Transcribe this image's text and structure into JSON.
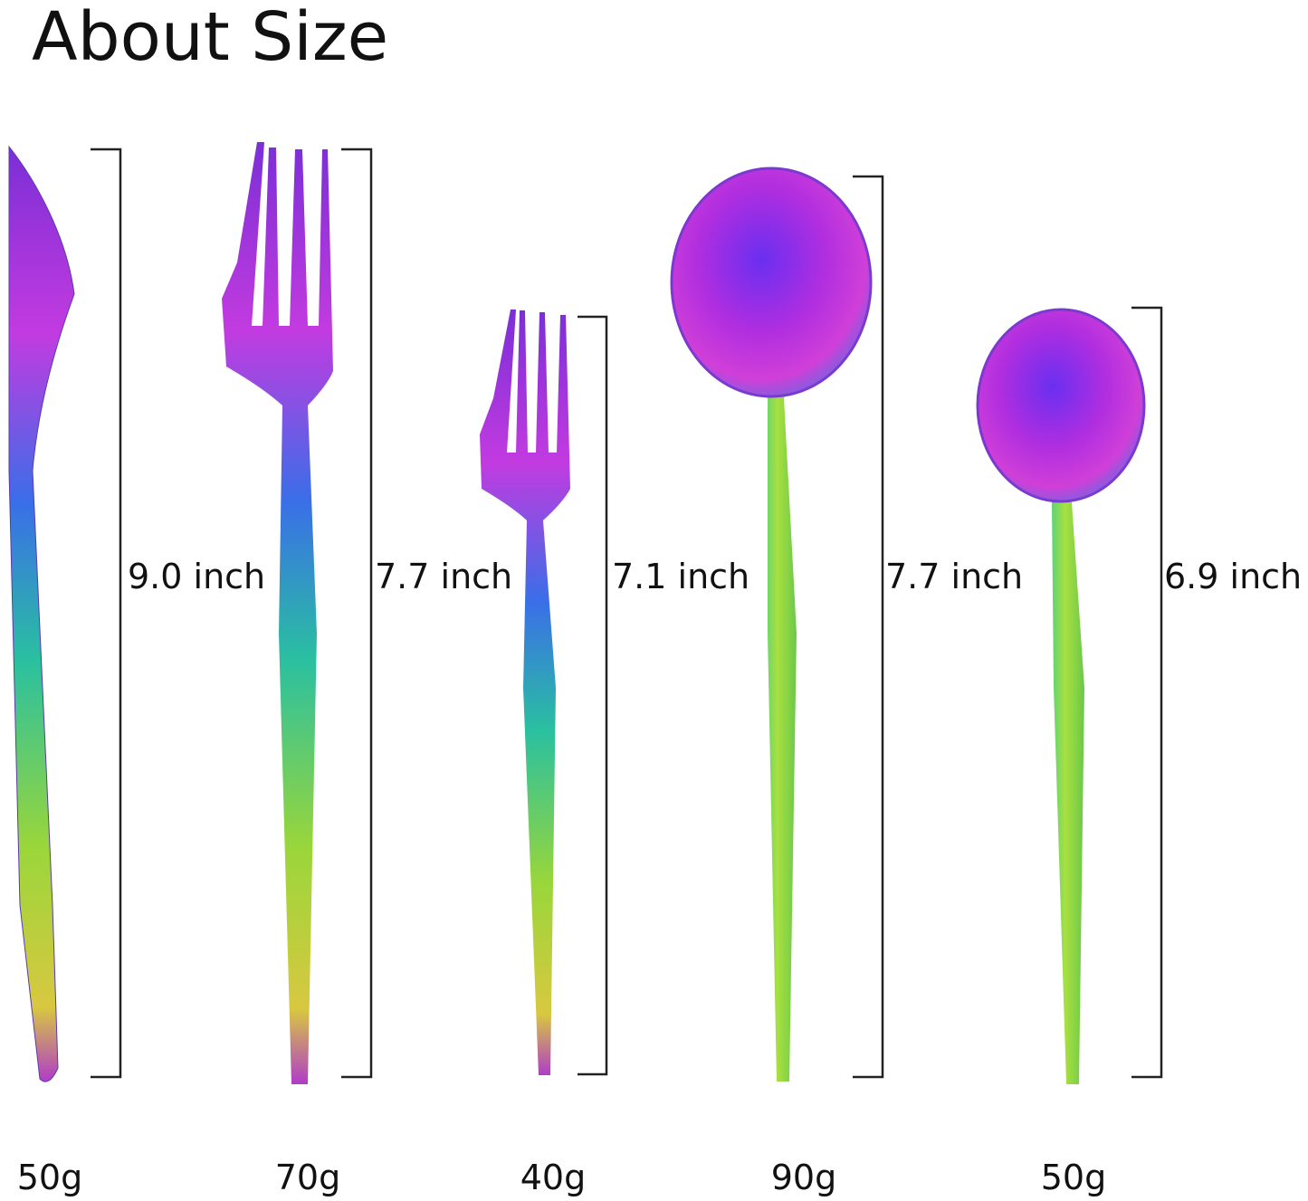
{
  "title": "About Size",
  "items": [
    {
      "length": "9.0 inch",
      "weight": "50g"
    },
    {
      "length": "7.7 inch",
      "weight": "70g"
    },
    {
      "length": "7.1 inch",
      "weight": "40g"
    },
    {
      "length": "7.7 inch",
      "weight": "90g"
    },
    {
      "length": "6.9 inch",
      "weight": "50g"
    }
  ]
}
